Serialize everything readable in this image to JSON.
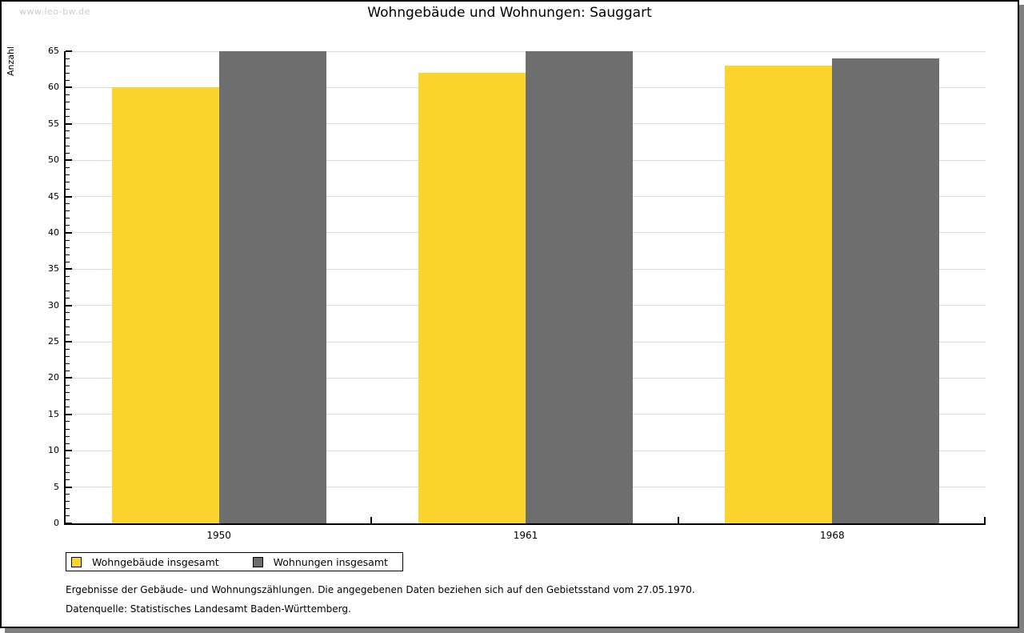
{
  "frame": {
    "watermark": "www.leo-bw.de"
  },
  "chart_data": {
    "type": "bar",
    "title": "Wohngebäude und Wohnungen: Sauggart",
    "xlabel": "",
    "ylabel": "Anzahl",
    "categories": [
      "1950",
      "1961",
      "1968"
    ],
    "series": [
      {
        "name": "Wohngebäude insgesamt",
        "color": "#FCD42D",
        "values": [
          60,
          62,
          63
        ]
      },
      {
        "name": "Wohnungen insgesamt",
        "color": "#6E6E6E",
        "values": [
          65,
          65,
          64
        ]
      }
    ],
    "ylim": [
      0,
      65
    ],
    "ytick_major": 5,
    "ytick_minor": 1,
    "grid": "horizontal-major-lines",
    "gridline_color": "#dcdcdc",
    "legend_position": "bottom-left"
  },
  "legend": {
    "items": [
      {
        "label": "Wohngebäude insgesamt",
        "color": "#FCD42D"
      },
      {
        "label": "Wohnungen insgesamt",
        "color": "#6E6E6E"
      }
    ]
  },
  "footer": {
    "line1": "Ergebnisse der Gebäude- und Wohnungszählungen. Die angegebenen Daten beziehen sich auf den Gebietsstand vom 27.05.1970.",
    "line2": "Datenquelle: Statistisches Landesamt Baden-Württemberg."
  }
}
